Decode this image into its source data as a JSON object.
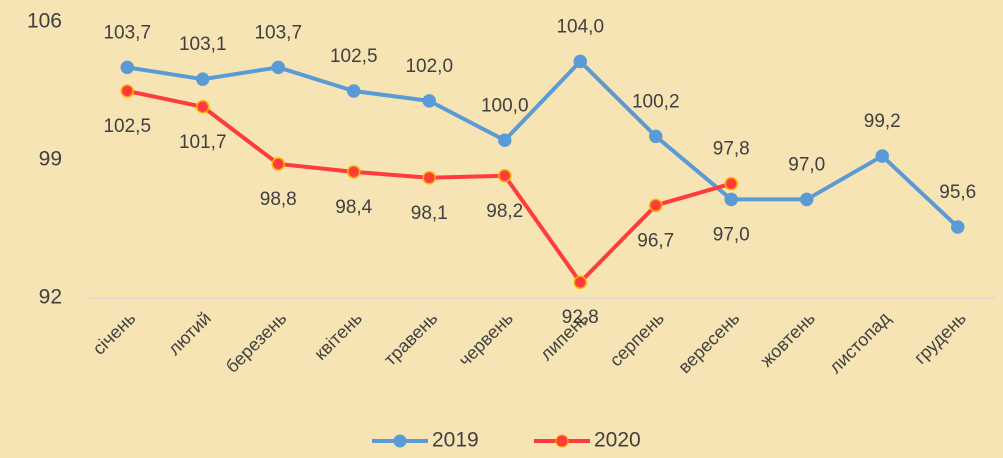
{
  "chart_data": {
    "type": "line",
    "categories": [
      "січень",
      "лютий",
      "березень",
      "квітень",
      "травень",
      "червень",
      "липень",
      "серпень",
      "вересень",
      "жовтень",
      "листопад",
      "грудень"
    ],
    "series": [
      {
        "name": "2019",
        "color": "#5b9bd5",
        "values": [
          103.7,
          103.1,
          103.7,
          102.5,
          102.0,
          100.0,
          104.0,
          100.2,
          97.0,
          97.0,
          99.2,
          95.6
        ],
        "value_labels": [
          "103,7",
          "103,1",
          "103,7",
          "102,5",
          "102,0",
          "100,0",
          "104,0",
          "100,2",
          "97,0",
          "97,0",
          "99,2",
          "95,6"
        ]
      },
      {
        "name": "2020",
        "color": "#ff3b3b",
        "values": [
          102.5,
          101.7,
          98.8,
          98.4,
          98.1,
          98.2,
          92.8,
          96.7,
          97.8,
          null,
          null,
          null
        ],
        "value_labels": [
          "102,5",
          "101,7",
          "98,8",
          "98,4",
          "98,1",
          "98,2",
          "92,8",
          "96,7",
          "97,8",
          null,
          null,
          null
        ]
      }
    ],
    "ylim": [
      92,
      106
    ],
    "yticks": [
      92,
      99,
      106
    ],
    "grid": false,
    "legend": "bottom"
  }
}
